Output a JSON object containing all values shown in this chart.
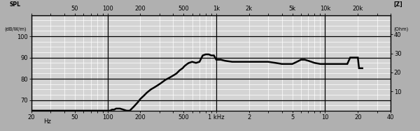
{
  "fig_bg": "#b0b0b0",
  "plot_bg": "#d4d4d4",
  "xlim": [
    20,
    40000
  ],
  "ylim_spl": [
    65,
    110
  ],
  "ylim_imp": [
    0,
    50
  ],
  "yticks_spl": [
    70,
    80,
    90,
    100
  ],
  "ytick_labels_spl": [
    "70",
    "80",
    "90",
    "100"
  ],
  "yticks_imp": [
    10,
    20,
    30,
    40
  ],
  "ytick_labels_imp": [
    "10",
    "20",
    "30",
    "40"
  ],
  "bottom_xtick_freqs": [
    20,
    50,
    100,
    200,
    500,
    1000,
    2000,
    5000,
    10000,
    20000,
    40000
  ],
  "bottom_xtick_labels": [
    "20",
    "50",
    "100",
    "200",
    "500",
    "1 kHz",
    "2",
    "5",
    "10",
    "20",
    "40"
  ],
  "top_xtick_freqs": [
    50,
    100,
    200,
    500,
    1000,
    2000,
    5000,
    10000,
    20000
  ],
  "top_xtick_labels": [
    "50",
    "100",
    "200",
    "500",
    "1k",
    "2k",
    "5k",
    "10k",
    "20k"
  ],
  "major_hlines": [
    70,
    80,
    90,
    100,
    110
  ],
  "major_vlines": [
    20,
    100,
    1000,
    10000,
    40000
  ],
  "minor_hline_step": 2.5,
  "ylabel_left_line1": "SPL",
  "ylabel_left_line2": "(dB/W/m)",
  "ylabel_right_line1": "[Z]",
  "ylabel_right_line2": "(Ohm)",
  "hz_label": "Hz",
  "hz_freq": 30,
  "line_color": "#000000",
  "line_width": 1.8,
  "grid_major_color": "#ffffff",
  "grid_minor_color": "#bebebe",
  "spl_freq": [
    20,
    80,
    90,
    95,
    100,
    105,
    110,
    115,
    120,
    125,
    130,
    140,
    150,
    160,
    175,
    190,
    200,
    215,
    230,
    250,
    270,
    290,
    310,
    340,
    370,
    400,
    430,
    460,
    490,
    510,
    525,
    540,
    560,
    600,
    650,
    700,
    750,
    800,
    850,
    900,
    950,
    1000,
    1050,
    1100,
    1200,
    1400,
    1600,
    2000,
    2500,
    3000,
    3500,
    4000,
    4500,
    5000,
    5500,
    6000,
    6500,
    7000,
    8000,
    9000,
    10000,
    11000,
    12000,
    14000,
    15000,
    16000,
    17000,
    18000,
    19000,
    19500,
    20000,
    20500,
    22000
  ],
  "spl_vals": [
    65,
    65,
    65,
    65,
    65,
    65,
    65.5,
    65.5,
    66,
    66,
    66,
    65.5,
    65,
    65,
    67,
    69,
    70.5,
    72,
    73.5,
    75,
    76,
    77,
    78,
    79.5,
    80.5,
    81.5,
    82.5,
    84,
    85,
    86,
    86.5,
    87,
    87.5,
    88,
    87.5,
    88,
    91,
    91.5,
    91.5,
    91,
    91,
    89,
    89,
    89,
    88.5,
    88,
    88,
    88,
    88,
    88,
    87.5,
    87,
    87,
    87,
    88,
    89,
    89,
    88.5,
    87.5,
    87,
    87,
    87,
    87,
    87,
    87,
    87,
    90,
    90,
    90,
    90,
    90,
    85,
    85
  ]
}
